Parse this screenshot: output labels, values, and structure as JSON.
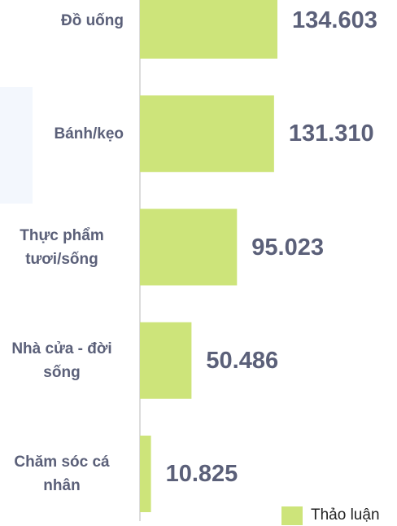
{
  "chart_data": {
    "type": "bar",
    "orientation": "horizontal",
    "categories": [
      "Đồ uống",
      "Bánh/kẹo",
      "Thực phẩm tươi/sống",
      "Nhà cửa - đời sống",
      "Chăm sóc cá nhân"
    ],
    "series": [
      {
        "name": "Thảo luận",
        "color": "#cde47a",
        "values": [
          134603,
          131310,
          95023,
          50486,
          10825
        ],
        "value_labels": [
          "134.603",
          "131.310",
          "95.023",
          "50.486",
          "10.825"
        ]
      }
    ]
  }
}
